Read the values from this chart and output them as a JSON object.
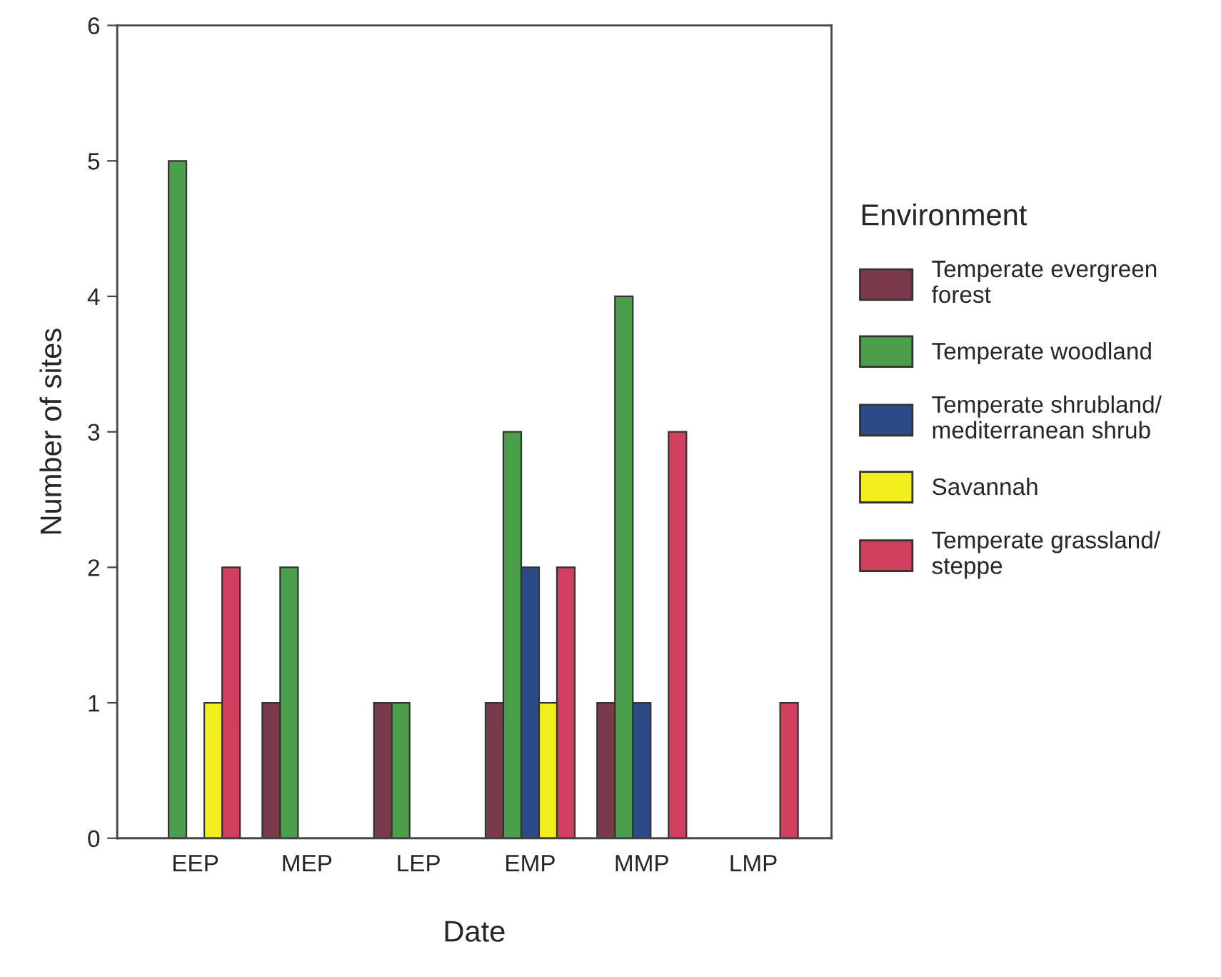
{
  "chart_data": {
    "type": "bar",
    "xlabel": "Date",
    "ylabel": "Number of sites",
    "legend_title": "Environment",
    "categories": [
      "EEP",
      "MEP",
      "LEP",
      "EMP",
      "MMP",
      "LMP"
    ],
    "series": [
      {
        "name": "Temperate evergreen forest",
        "color": "#7a3a4c",
        "values": [
          0,
          1,
          1,
          1,
          1,
          0
        ]
      },
      {
        "name": "Temperate woodland",
        "color": "#4c9f4a",
        "values": [
          5,
          2,
          1,
          3,
          4,
          0
        ]
      },
      {
        "name": "Temperate shrubland/mediterranean shrub",
        "color": "#2c4a88",
        "values": [
          0,
          0,
          0,
          2,
          1,
          0
        ]
      },
      {
        "name": "Savannah",
        "color": "#f2ee1e",
        "values": [
          1,
          0,
          0,
          1,
          0,
          0
        ]
      },
      {
        "name": "Temperate grassland/steppe",
        "color": "#d23e5e",
        "values": [
          2,
          0,
          0,
          2,
          3,
          1
        ]
      }
    ],
    "ylim": [
      0,
      6
    ],
    "yticks": [
      0,
      1,
      2,
      3,
      4,
      5,
      6
    ],
    "grid": false,
    "legend": "right"
  }
}
